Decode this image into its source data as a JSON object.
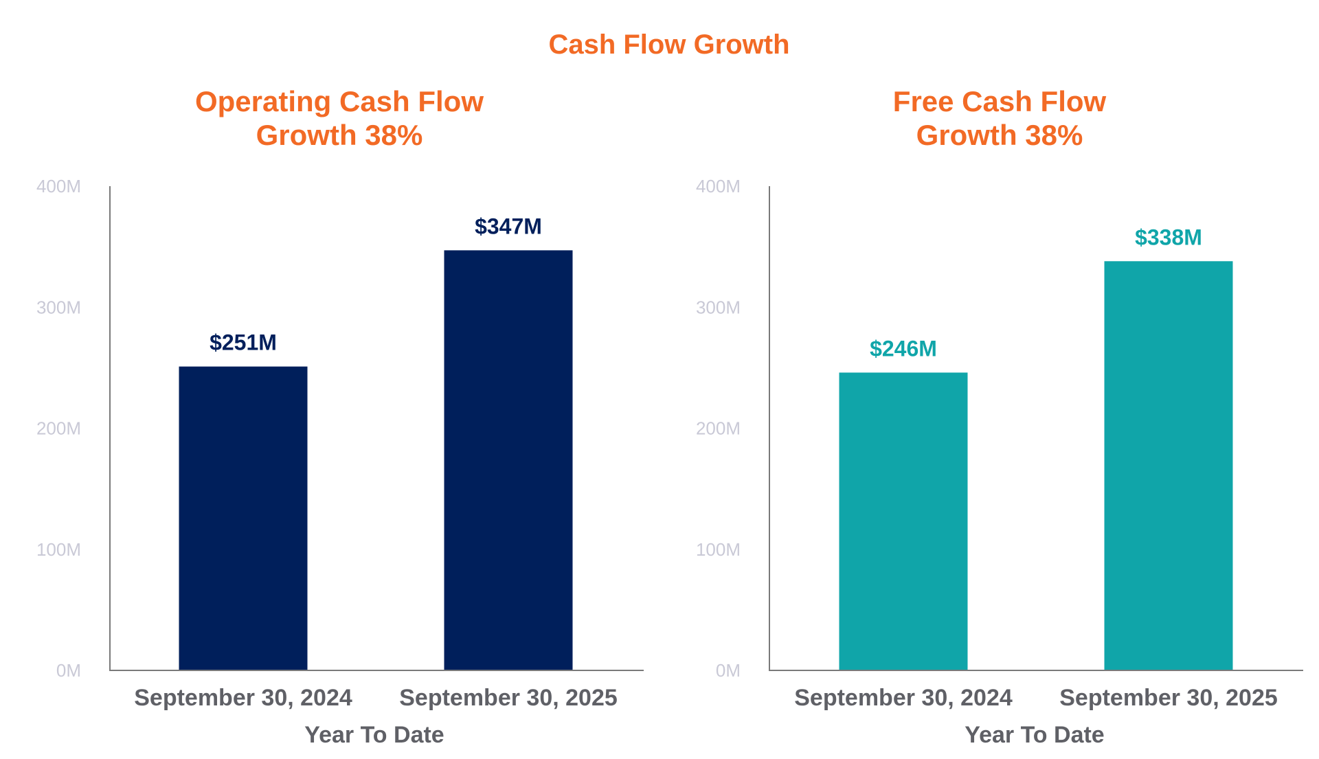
{
  "title": "Cash Flow Growth",
  "chart_data": [
    {
      "type": "bar",
      "title_lines": [
        "Operating Cash Flow",
        "Growth 38%"
      ],
      "categories": [
        "September 30, 2024",
        "September 30, 2025"
      ],
      "values": [
        251,
        347
      ],
      "value_labels": [
        "$251M",
        "$347M"
      ],
      "xlabel": "Year To Date",
      "ylabel": "",
      "ylim": [
        0,
        400
      ],
      "yticks": [
        0,
        100,
        200,
        300,
        400
      ],
      "ytick_labels": [
        "0M",
        "100M",
        "200M",
        "300M",
        "400M"
      ],
      "bar_color": "#001f5b",
      "label_color": "#001f5b",
      "grid": false
    },
    {
      "type": "bar",
      "title_lines": [
        "Free Cash Flow",
        "Growth 38%"
      ],
      "categories": [
        "September 30, 2024",
        "September 30, 2025"
      ],
      "values": [
        246,
        338
      ],
      "value_labels": [
        "$246M",
        "$338M"
      ],
      "xlabel": "Year To Date",
      "ylabel": "",
      "ylim": [
        0,
        400
      ],
      "yticks": [
        0,
        100,
        200,
        300,
        400
      ],
      "ytick_labels": [
        "0M",
        "100M",
        "200M",
        "300M",
        "400M"
      ],
      "bar_color": "#10a5a9",
      "label_color": "#10a5a9",
      "grid": false
    }
  ],
  "colors": {
    "accent": "#f26a25",
    "tick_text": "#c9c9d6",
    "category_text": "#5f6066",
    "axis": "#7a7a7a"
  }
}
